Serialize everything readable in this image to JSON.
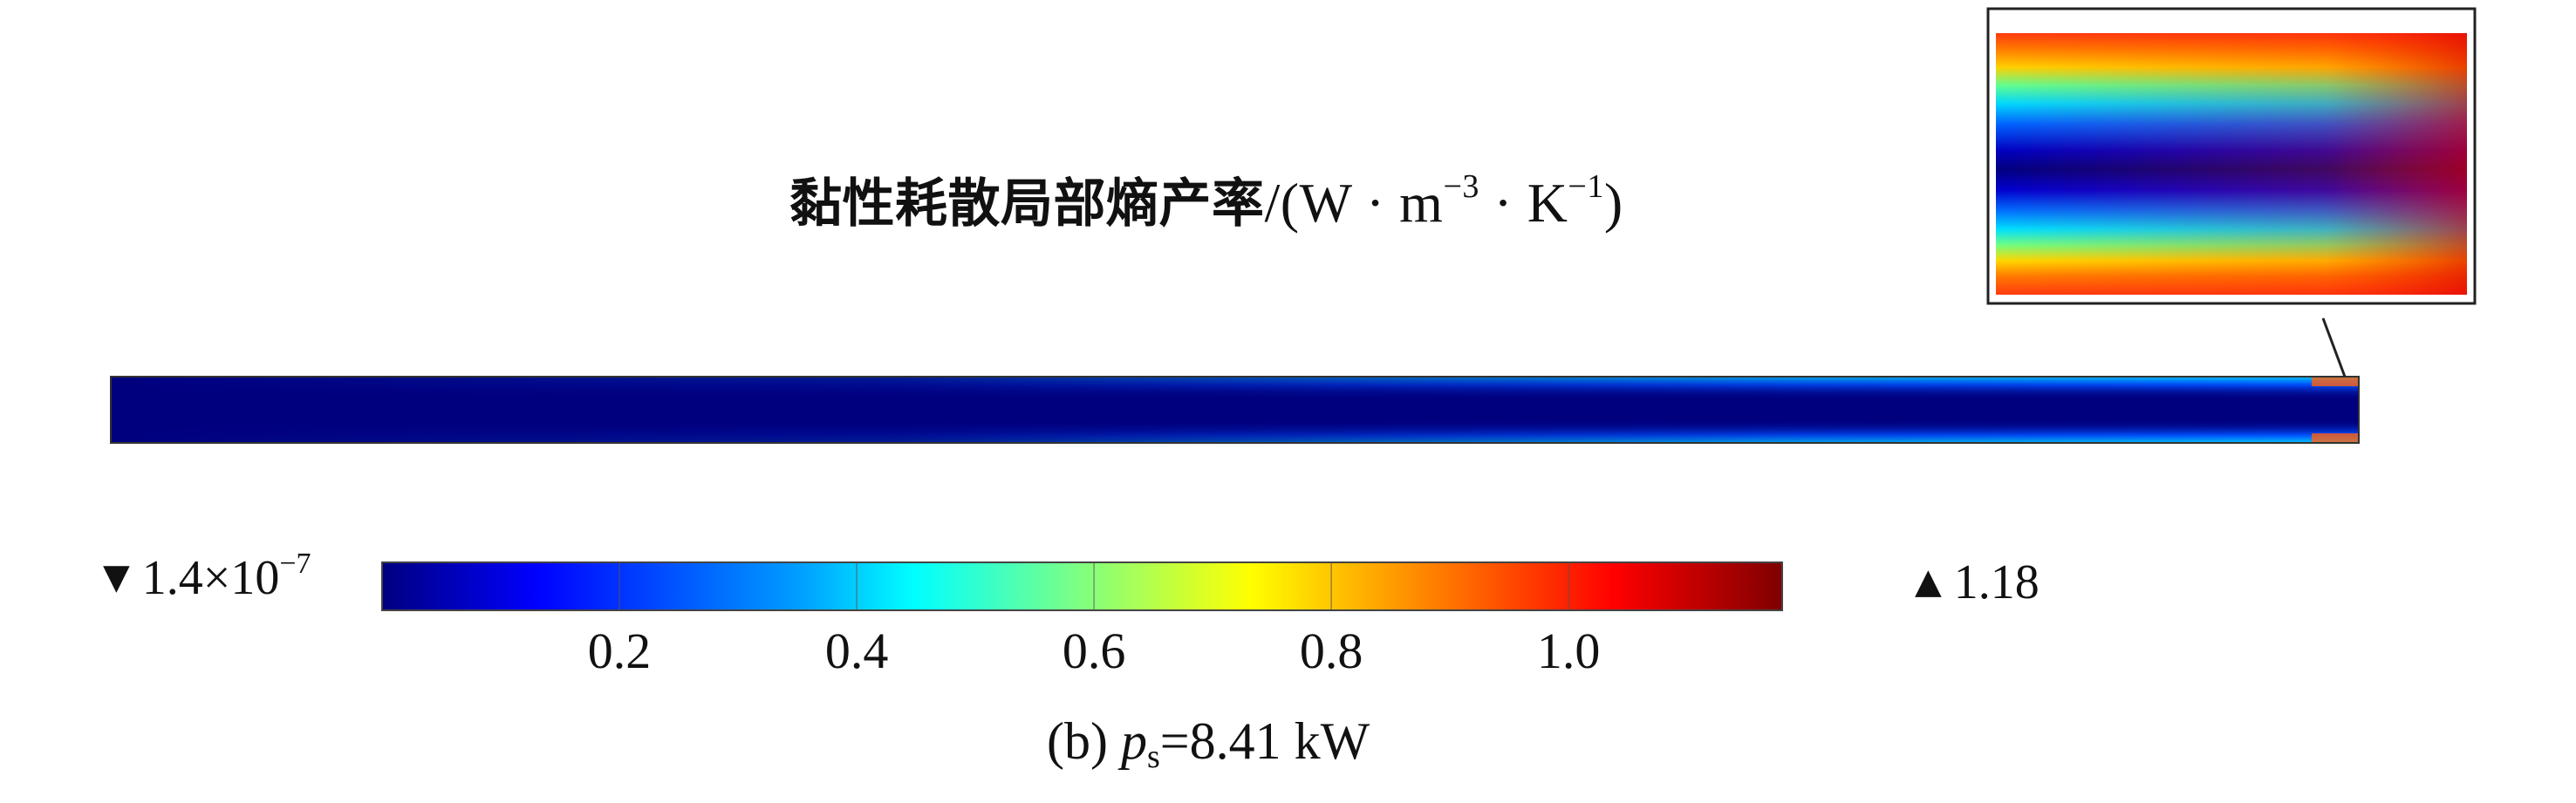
{
  "title": {
    "text_cjk": "黏性耗散局部熵产率",
    "units_prefix": "/(W · m",
    "units_exp1": "−3",
    "units_mid": " · K",
    "units_exp2": "−1",
    "units_suffix": ")"
  },
  "colorbar": {
    "min_symbol": "▼",
    "min_mantissa": "1.4×10",
    "min_exp": "−7",
    "max_symbol": "▲",
    "max_value": "1.18",
    "ticks": [
      "0.2",
      "0.4",
      "0.6",
      "0.8",
      "1.0"
    ],
    "tick_values": [
      0.2,
      0.4,
      0.6,
      0.8,
      1.0
    ],
    "range": [
      1.4e-07,
      1.18
    ],
    "colormap": [
      "#00007f",
      "#0000ff",
      "#00a0ff",
      "#00ffff",
      "#80ff80",
      "#ffff00",
      "#ff8000",
      "#ff0000",
      "#7f0000"
    ]
  },
  "caption": {
    "prefix": "(b) ",
    "var": "p",
    "sub": "s",
    "rest": "=8.41 kW"
  }
}
